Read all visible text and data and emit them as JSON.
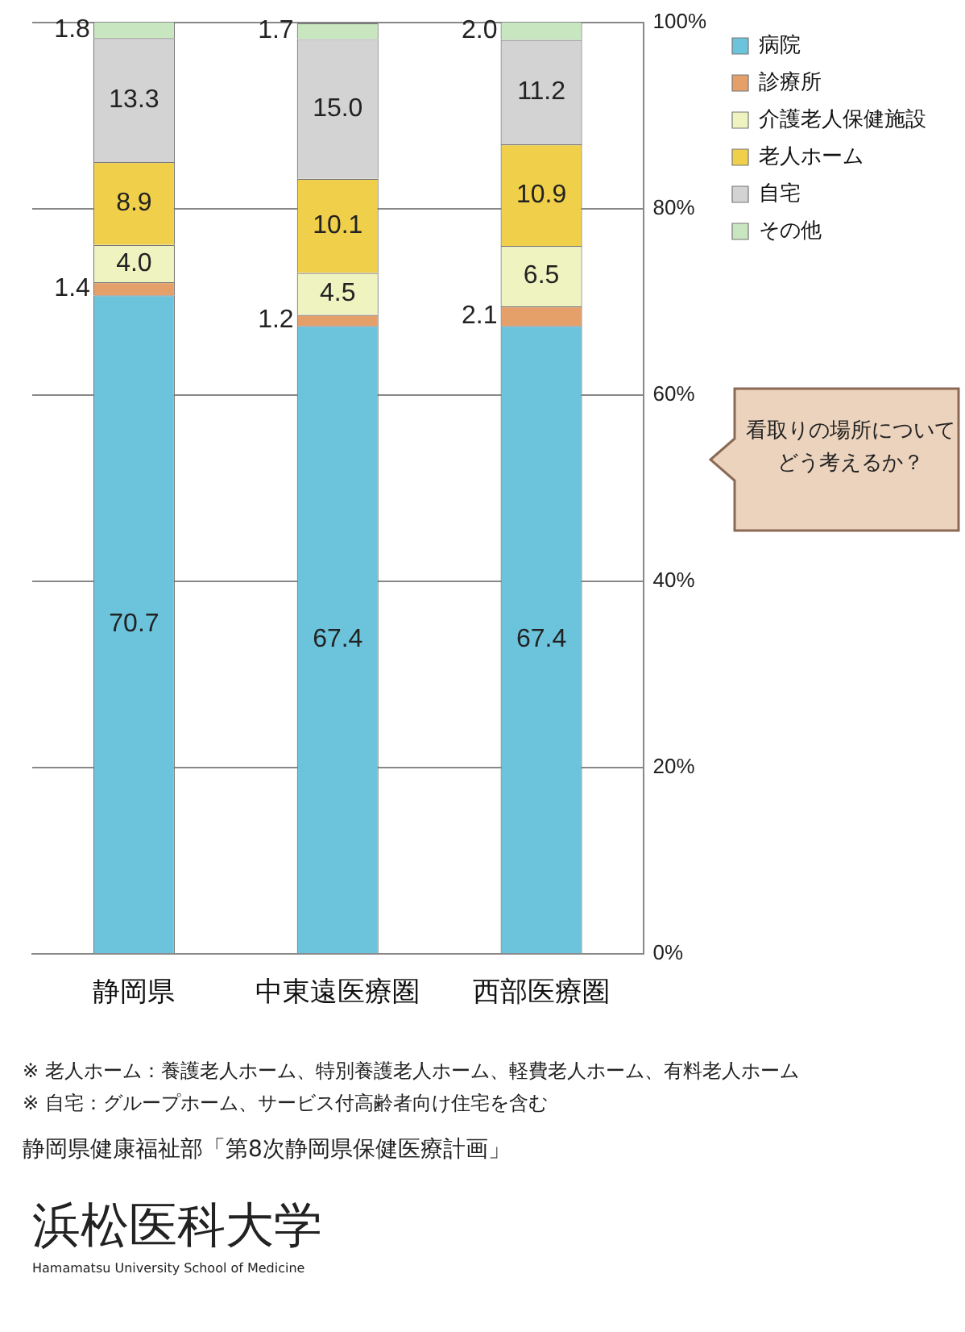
{
  "chart_data": {
    "type": "bar",
    "stacked": true,
    "categories": [
      "静岡県",
      "中東遠医療圏",
      "西部医療圏"
    ],
    "series": [
      {
        "name": "病院",
        "color": "#6cc3dc",
        "values": [
          70.7,
          67.4,
          67.4
        ],
        "value_labels": [
          "70.7",
          "67.4",
          "67.4"
        ]
      },
      {
        "name": "診療所",
        "color": "#e5a06a",
        "values": [
          1.4,
          1.2,
          2.1
        ],
        "value_labels": [
          "1.4",
          "1.2",
          "2.1"
        ]
      },
      {
        "name": "介護老人保健施設",
        "color": "#eef3c0",
        "values": [
          4.0,
          4.5,
          6.5
        ],
        "value_labels": [
          "4.0",
          "4.5",
          "6.5"
        ]
      },
      {
        "name": "老人ホーム",
        "color": "#f0cf4a",
        "values": [
          8.9,
          10.1,
          10.9
        ],
        "value_labels": [
          "8.9",
          "10.1",
          "10.9"
        ]
      },
      {
        "name": "自宅",
        "color": "#d3d3d3",
        "values": [
          13.3,
          15.0,
          11.2
        ],
        "value_labels": [
          "13.3",
          "15.0",
          "11.2"
        ]
      },
      {
        "name": "その他",
        "color": "#c8e6c0",
        "values": [
          1.8,
          1.7,
          2.0
        ],
        "value_labels": [
          "1.8",
          "1.7",
          "2.0"
        ]
      }
    ],
    "ylim": [
      0,
      100
    ],
    "yticks": [
      {
        "value": 0,
        "label": "0%"
      },
      {
        "value": 20,
        "label": "20%"
      },
      {
        "value": 40,
        "label": "40%"
      },
      {
        "value": 60,
        "label": "60%"
      },
      {
        "value": 80,
        "label": "80%"
      },
      {
        "value": 100,
        "label": "100%"
      }
    ],
    "grid": "y",
    "legend": "right",
    "annotations": [
      "※ 老人ホーム：養護老人ホーム、特別養護老人ホーム、軽費老人ホーム、有料老人ホーム",
      "※ 自宅：グループホーム、サービス付高齢者向け住宅を含む",
      "静岡県健康福祉部「第8次静岡県保健医療計画」",
      "看取りの場所についてどう考えるか？",
      "浜松医科大学",
      "Hamamatsu University School of Medicine"
    ]
  }
}
